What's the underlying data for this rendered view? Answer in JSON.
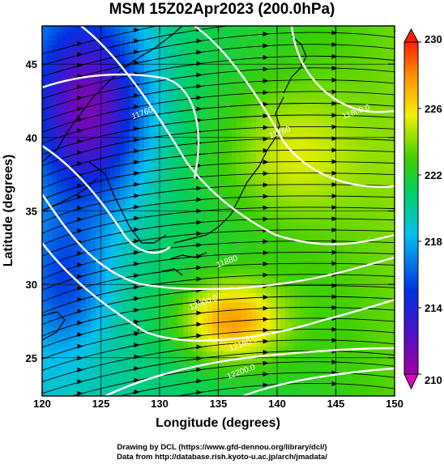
{
  "title": "MSM 15Z02Apr2023 (200.0hPa)",
  "xlabel": "Longitude (degrees)",
  "ylabel": "Latitude  (degrees)",
  "footer_line1": "Drawing by DCL (https://www.gfd-dennou.org/library/dcl/)",
  "footer_line2": "Data from http://database.rish.kyoto-u.ac.jp/arch/jmadata/",
  "chart_data": {
    "type": "heatmap",
    "title": "MSM 15Z02Apr2023 (200.0hPa)",
    "xlabel": "Longitude (degrees)",
    "ylabel": "Latitude  (degrees)",
    "xlim": [
      120,
      150
    ],
    "ylim": [
      22.4,
      47.6
    ],
    "x_ticks": [
      120,
      125,
      130,
      135,
      140,
      145,
      150
    ],
    "y_ticks": [
      25,
      30,
      35,
      40,
      45
    ],
    "colorbar": {
      "min": 210,
      "max": 230,
      "ticks": [
        210,
        214,
        218,
        222,
        226,
        230
      ],
      "colors": [
        "#a000a0",
        "#5010c8",
        "#0030e0",
        "#00c0f0",
        "#00d060",
        "#40d000",
        "#f0f000",
        "#ff9000",
        "#ff2000"
      ]
    },
    "contour_labels": [
      {
        "text": "11760",
        "lon": 128.6,
        "lat": 41.5
      },
      {
        "text": "11760",
        "lon": 140.3,
        "lat": 40.2
      },
      {
        "text": "11800.0",
        "lon": 146.8,
        "lat": 41.6
      },
      {
        "text": "11880",
        "lon": 135.8,
        "lat": 31.4
      },
      {
        "text": "12000.0",
        "lon": 133.8,
        "lat": 28.6
      },
      {
        "text": "12160.0",
        "lon": 137.2,
        "lat": 25.8
      },
      {
        "text": "12200.0",
        "lon": 137.0,
        "lat": 23.9
      }
    ]
  }
}
